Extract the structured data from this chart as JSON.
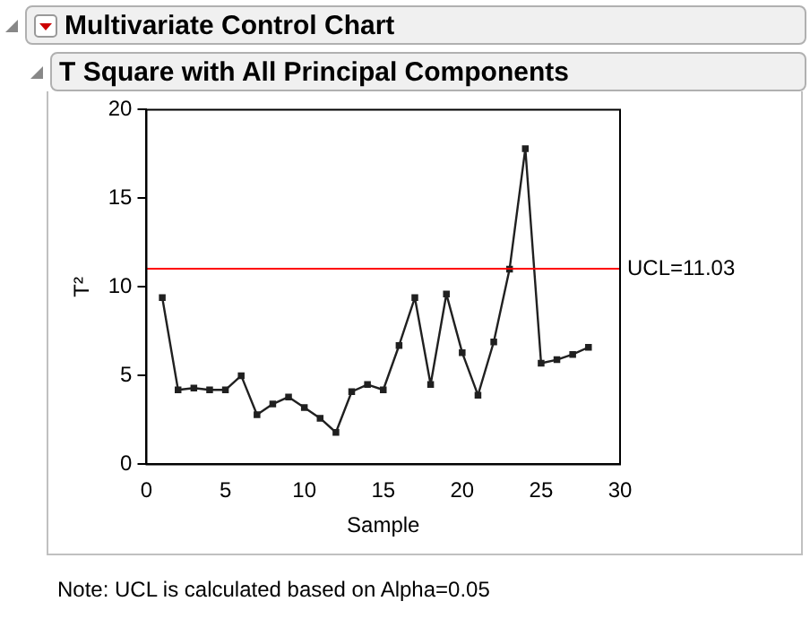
{
  "chart_data": {
    "type": "line",
    "title": "Multivariate Control Chart",
    "subtitle": "T Square with All Principal Components",
    "xlabel": "Sample",
    "ylabel": "T²",
    "x": [
      1,
      2,
      3,
      4,
      5,
      6,
      7,
      8,
      9,
      10,
      11,
      12,
      13,
      14,
      15,
      16,
      17,
      18,
      19,
      20,
      21,
      22,
      23,
      24,
      25,
      26,
      27,
      28
    ],
    "series": [
      {
        "color": "#202020",
        "values": [
          9.4,
          4.2,
          4.3,
          4.2,
          4.2,
          5.0,
          2.8,
          3.4,
          3.8,
          3.2,
          2.6,
          1.8,
          4.1,
          4.5,
          4.2,
          6.7,
          9.4,
          4.5,
          9.6,
          6.3,
          3.9,
          6.9,
          11.0,
          17.8,
          5.7,
          5.9,
          6.2,
          6.6
        ]
      }
    ],
    "xlim": [
      0,
      30
    ],
    "xticks": [
      0,
      5,
      10,
      15,
      20,
      25,
      30
    ],
    "ylim": [
      0,
      20
    ],
    "yticks": [
      0,
      5,
      10,
      15,
      20
    ],
    "ref_lines": [
      {
        "axis": "y",
        "value": 11.03,
        "label": "UCL=11.03",
        "color": "#ff0000"
      }
    ],
    "annotations": [
      "Note: UCL is calculated based on Alpha=0.05"
    ],
    "grid": false,
    "legend": false,
    "marker": "square",
    "line_style": "solid"
  }
}
